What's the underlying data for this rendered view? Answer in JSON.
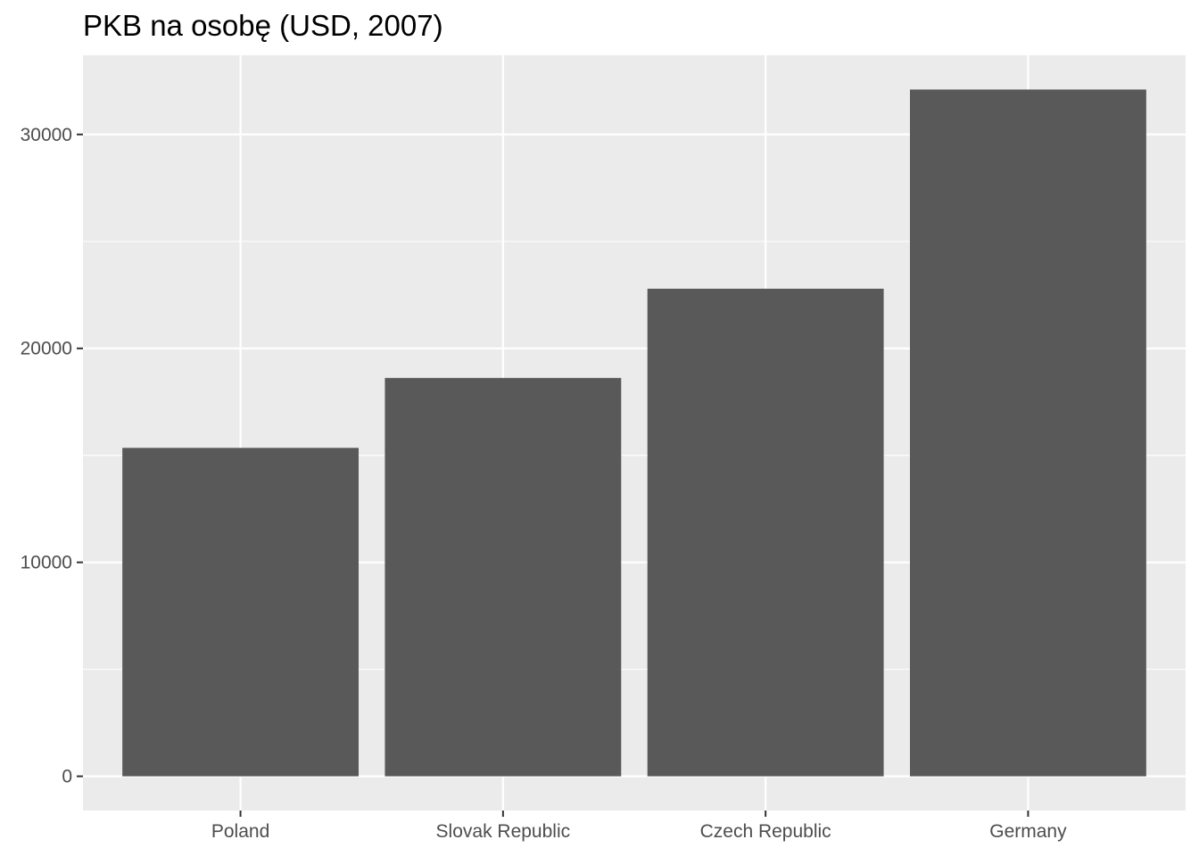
{
  "chart_data": {
    "type": "bar",
    "title": "PKB na osobę (USD, 2007)",
    "xlabel": "",
    "ylabel": "",
    "categories": [
      "Poland",
      "Slovak Republic",
      "Czech Republic",
      "Germany"
    ],
    "values": [
      15350,
      18620,
      22790,
      32100
    ],
    "ylim": [
      -1600,
      33700
    ],
    "yticks": [
      0,
      10000,
      20000,
      30000
    ],
    "grid": true,
    "colors": {
      "panel": "#ebebeb",
      "grid": "#ffffff",
      "bar": "#595959",
      "axis_text": "#4d4d4d",
      "tick": "#333333"
    }
  }
}
